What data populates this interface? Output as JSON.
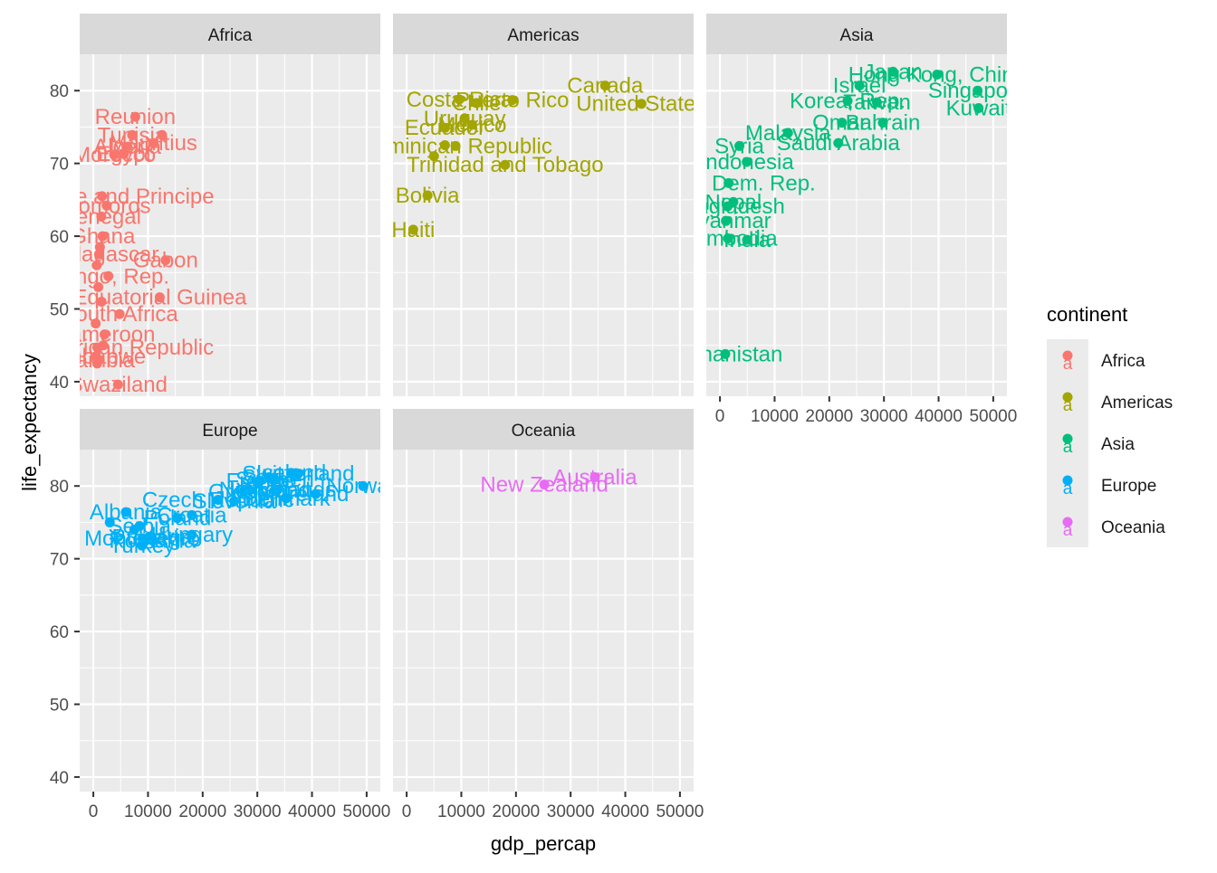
{
  "chart_data": {
    "type": "scatter",
    "xlabel": "gdp_percap",
    "ylabel": "life_expectancy",
    "xlim": [
      -2500,
      52500
    ],
    "ylim": [
      38,
      85
    ],
    "x_ticks": [
      0,
      10000,
      20000,
      30000,
      40000,
      50000
    ],
    "x_tick_labels": [
      "0",
      "10000",
      "20000",
      "30000",
      "40000",
      "50000"
    ],
    "y_ticks": [
      40,
      50,
      60,
      70,
      80
    ],
    "y_tick_labels": [
      "40",
      "50",
      "60",
      "70",
      "80"
    ],
    "grid": true,
    "legend_title": "continent",
    "legend_position": "right",
    "colors": {
      "Africa": "#F8766D",
      "Americas": "#A3A500",
      "Asia": "#00BF7D",
      "Europe": "#00B0F6",
      "Oceania": "#E76BF3"
    },
    "legend": [
      "Africa",
      "Americas",
      "Asia",
      "Europe",
      "Oceania"
    ],
    "facets": [
      {
        "label": "Africa",
        "points": [
          {
            "x": 7670,
            "y": 76.4,
            "label": "Reunion"
          },
          {
            "x": 7090,
            "y": 73.9,
            "label": "Tunisia"
          },
          {
            "x": 12570,
            "y": 73.9,
            "label": ""
          },
          {
            "x": 10960,
            "y": 72.8,
            "label": "Mauritius"
          },
          {
            "x": 6220,
            "y": 72.3,
            "label": "Algeria"
          },
          {
            "x": 3820,
            "y": 71.2,
            "label": "Morocco"
          },
          {
            "x": 5580,
            "y": 71.3,
            "label": "Egypt"
          },
          {
            "x": 1600,
            "y": 65.5,
            "label": "Sao Tome and Principe"
          },
          {
            "x": 2450,
            "y": 64.2,
            "label": "Comoros"
          },
          {
            "x": 1460,
            "y": 62.7,
            "label": "Senegal"
          },
          {
            "x": 1690,
            "y": 60.0,
            "label": "Ghana"
          },
          {
            "x": 1040,
            "y": 57.5,
            "label": "Madagascar"
          },
          {
            "x": 13210,
            "y": 56.7,
            "label": "Gabon"
          },
          {
            "x": 2750,
            "y": 54.5,
            "label": "Congo, Rep."
          },
          {
            "x": 12150,
            "y": 51.6,
            "label": "Equatorial Guinea"
          },
          {
            "x": 4800,
            "y": 49.3,
            "label": "South Africa"
          },
          {
            "x": 2050,
            "y": 46.5,
            "label": "Cameroon"
          },
          {
            "x": 710,
            "y": 44.7,
            "label": "Central African Republic"
          },
          {
            "x": 1000,
            "y": 43.0,
            "label": "Zambia"
          },
          {
            "x": 470,
            "y": 43.5,
            "label": "Zimbabwe"
          },
          {
            "x": 4510,
            "y": 39.6,
            "label": "Swaziland"
          },
          {
            "x": 1200,
            "y": 58.5,
            "label": ""
          },
          {
            "x": 620,
            "y": 56.0,
            "label": ""
          },
          {
            "x": 900,
            "y": 53.0,
            "label": ""
          },
          {
            "x": 1500,
            "y": 51.0,
            "label": ""
          },
          {
            "x": 430,
            "y": 48.0,
            "label": ""
          },
          {
            "x": 1800,
            "y": 45.0,
            "label": ""
          },
          {
            "x": 700,
            "y": 42.5,
            "label": ""
          }
        ]
      },
      {
        "label": "Americas",
        "points": [
          {
            "x": 36320,
            "y": 80.7,
            "label": "Canada"
          },
          {
            "x": 42950,
            "y": 78.2,
            "label": "United States"
          },
          {
            "x": 9650,
            "y": 78.8,
            "label": "Costa Rica"
          },
          {
            "x": 19330,
            "y": 78.7,
            "label": "Puerto Rico"
          },
          {
            "x": 12780,
            "y": 78.3,
            "label": "Chile"
          },
          {
            "x": 10610,
            "y": 76.2,
            "label": "Uruguay"
          },
          {
            "x": 11980,
            "y": 75.3,
            "label": "Mexico"
          },
          {
            "x": 7010,
            "y": 74.9,
            "label": "Ecuador"
          },
          {
            "x": 8950,
            "y": 72.4,
            "label": "Dominican Republic"
          },
          {
            "x": 18010,
            "y": 69.8,
            "label": "Trinidad and Tobago"
          },
          {
            "x": 3820,
            "y": 65.6,
            "label": "Bolivia"
          },
          {
            "x": 1200,
            "y": 60.9,
            "label": "Haiti"
          },
          {
            "x": 5000,
            "y": 71.0,
            "label": ""
          },
          {
            "x": 7000,
            "y": 72.5,
            "label": ""
          }
        ]
      },
      {
        "label": "Asia",
        "points": [
          {
            "x": 31660,
            "y": 82.6,
            "label": "Japan"
          },
          {
            "x": 39720,
            "y": 82.2,
            "label": "Hong Kong, China"
          },
          {
            "x": 25520,
            "y": 80.7,
            "label": "Israel"
          },
          {
            "x": 47140,
            "y": 80.0,
            "label": "Singapore"
          },
          {
            "x": 47310,
            "y": 77.6,
            "label": "Kuwait"
          },
          {
            "x": 23350,
            "y": 78.6,
            "label": "Korea, Rep."
          },
          {
            "x": 28720,
            "y": 78.4,
            "label": "Taiwan"
          },
          {
            "x": 22320,
            "y": 75.6,
            "label": "Oman"
          },
          {
            "x": 29800,
            "y": 75.6,
            "label": "Bahrain"
          },
          {
            "x": 12450,
            "y": 74.2,
            "label": "Malaysia"
          },
          {
            "x": 21650,
            "y": 72.8,
            "label": "Saudi Arabia"
          },
          {
            "x": 3550,
            "y": 72.4,
            "label": "Syria"
          },
          {
            "x": 4900,
            "y": 70.2,
            "label": "Indonesia"
          },
          {
            "x": 1590,
            "y": 67.3,
            "label": "Korea, Dem. Rep."
          },
          {
            "x": 2450,
            "y": 64.7,
            "label": "Nepal"
          },
          {
            "x": 1390,
            "y": 64.1,
            "label": "Bangladesh"
          },
          {
            "x": 1090,
            "y": 62.1,
            "label": "Myanmar"
          },
          {
            "x": 1460,
            "y": 59.7,
            "label": "Cambodia"
          },
          {
            "x": 4960,
            "y": 59.5,
            "label": "India"
          },
          {
            "x": 970,
            "y": 43.8,
            "label": "Afghanistan"
          }
        ]
      },
      {
        "label": "Europe",
        "points": [
          {
            "x": 49360,
            "y": 80.0,
            "label": "Norway"
          },
          {
            "x": 37500,
            "y": 81.7,
            "label": "Switzerland"
          },
          {
            "x": 36180,
            "y": 81.8,
            "label": "Iceland"
          },
          {
            "x": 33200,
            "y": 80.9,
            "label": "Sweden"
          },
          {
            "x": 32170,
            "y": 81.2,
            "label": "Spain"
          },
          {
            "x": 40680,
            "y": 78.9,
            "label": "Ireland"
          },
          {
            "x": 35280,
            "y": 78.3,
            "label": "Denmark"
          },
          {
            "x": 33690,
            "y": 79.5,
            "label": "Netherlands"
          },
          {
            "x": 28570,
            "y": 79.4,
            "label": "Italy"
          },
          {
            "x": 27540,
            "y": 79.2,
            "label": "Greece"
          },
          {
            "x": 33200,
            "y": 79.4,
            "label": "Finland"
          },
          {
            "x": 30470,
            "y": 80.7,
            "label": "France"
          },
          {
            "x": 22830,
            "y": 78.1,
            "label": "Czech Republic"
          },
          {
            "x": 25770,
            "y": 77.9,
            "label": "Slovenia"
          },
          {
            "x": 18010,
            "y": 76.0,
            "label": "Croatia"
          },
          {
            "x": 8460,
            "y": 74.5,
            "label": "Serbia"
          },
          {
            "x": 5940,
            "y": 76.4,
            "label": "Albania"
          },
          {
            "x": 15390,
            "y": 75.6,
            "label": "Poland"
          },
          {
            "x": 18010,
            "y": 73.3,
            "label": "Hungary"
          },
          {
            "x": 10810,
            "y": 72.5,
            "label": "Romania"
          },
          {
            "x": 8950,
            "y": 72.8,
            "label": "Montenegro"
          },
          {
            "x": 10680,
            "y": 73.0,
            "label": "Bulgaria"
          },
          {
            "x": 8900,
            "y": 71.8,
            "label": "Turkey"
          },
          {
            "x": 3000,
            "y": 75.0,
            "label": ""
          },
          {
            "x": 7500,
            "y": 74.0,
            "label": ""
          }
        ]
      },
      {
        "label": "Oceania",
        "points": [
          {
            "x": 34430,
            "y": 81.2,
            "label": "Australia"
          },
          {
            "x": 25190,
            "y": 80.2,
            "label": "New Zealand"
          }
        ]
      }
    ]
  }
}
